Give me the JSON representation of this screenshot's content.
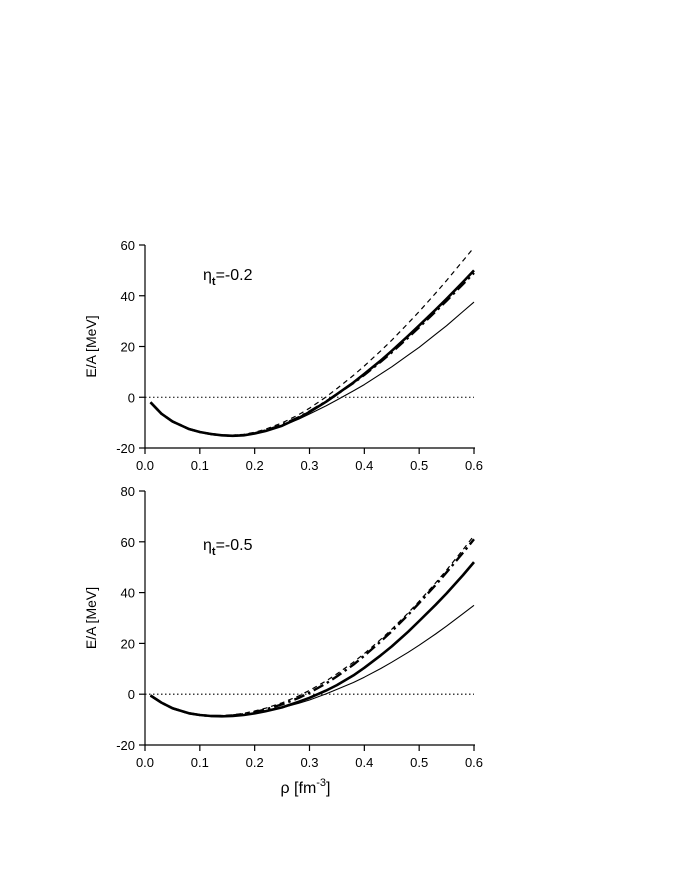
{
  "chart_data": [
    {
      "type": "line",
      "annotation": {
        "symbol": "η",
        "subscript": "t",
        "value": "=-0.2"
      },
      "ylabel": "E/A [MeV]",
      "xlabel": "",
      "xlim": [
        0.0,
        0.6
      ],
      "ylim": [
        -20,
        60
      ],
      "xticks": [
        "0.0",
        "0.1",
        "0.2",
        "0.3",
        "0.4",
        "0.5",
        "0.6"
      ],
      "yticks": [
        "-20",
        "0",
        "20",
        "40",
        "60"
      ],
      "reference_line": {
        "y": 0,
        "style": "dotted"
      },
      "x": [
        0.01,
        0.03,
        0.05,
        0.08,
        0.1,
        0.12,
        0.14,
        0.16,
        0.18,
        0.2,
        0.22,
        0.25,
        0.28,
        0.3,
        0.33,
        0.35,
        0.38,
        0.4,
        0.43,
        0.45,
        0.48,
        0.5,
        0.53,
        0.55,
        0.58,
        0.6
      ],
      "series": [
        {
          "style": "thick-solid",
          "values": [
            -2,
            -6.5,
            -9.5,
            -12.5,
            -13.7,
            -14.5,
            -15.0,
            -15.2,
            -15.0,
            -14.3,
            -13.3,
            -11.2,
            -8.2,
            -5.8,
            -1.8,
            1.2,
            5.8,
            9.2,
            14.5,
            18.3,
            24.2,
            28.3,
            34.5,
            38.8,
            45.4,
            50.0
          ]
        },
        {
          "style": "thin-solid",
          "values": [
            -2,
            -6.5,
            -9.5,
            -12.5,
            -13.7,
            -14.5,
            -15.0,
            -15.2,
            -15.0,
            -14.2,
            -13.2,
            -11.3,
            -8.7,
            -6.6,
            -3.4,
            -1.1,
            2.5,
            5.0,
            9.2,
            12.0,
            16.6,
            19.7,
            24.8,
            28.2,
            33.8,
            37.5
          ]
        },
        {
          "style": "thin-dashed",
          "values": [
            -2,
            -6.5,
            -9.5,
            -12.5,
            -13.7,
            -14.4,
            -14.8,
            -14.9,
            -14.6,
            -13.8,
            -12.6,
            -10.1,
            -6.9,
            -4.3,
            0.1,
            3.4,
            8.6,
            12.3,
            18.3,
            22.5,
            29.2,
            33.8,
            41.0,
            46.0,
            53.8,
            59.0
          ]
        },
        {
          "style": "dash-dot",
          "values": [
            -2,
            -6.5,
            -9.5,
            -12.5,
            -13.7,
            -14.5,
            -15.0,
            -15.2,
            -14.9,
            -14.2,
            -13.1,
            -10.9,
            -7.9,
            -5.6,
            -1.7,
            1.2,
            5.6,
            8.8,
            14.0,
            17.7,
            23.5,
            27.6,
            33.8,
            38.0,
            44.6,
            49.0
          ]
        }
      ]
    },
    {
      "type": "line",
      "annotation": {
        "symbol": "η",
        "subscript": "t",
        "value": "=-0.5"
      },
      "ylabel": "E/A [MeV]",
      "xlabel": "ρ [fm-3]",
      "xlabel_main": "ρ [fm",
      "xlabel_sup": "-3",
      "xlabel_end": "]",
      "xlim": [
        0.0,
        0.6
      ],
      "ylim": [
        -20,
        80
      ],
      "xticks": [
        "0.0",
        "0.1",
        "0.2",
        "0.3",
        "0.4",
        "0.5",
        "0.6"
      ],
      "yticks": [
        "-20",
        "0",
        "20",
        "40",
        "60",
        "80"
      ],
      "reference_line": {
        "y": 0,
        "style": "dotted"
      },
      "x": [
        0.01,
        0.03,
        0.05,
        0.08,
        0.1,
        0.12,
        0.14,
        0.16,
        0.18,
        0.2,
        0.22,
        0.25,
        0.28,
        0.3,
        0.33,
        0.35,
        0.38,
        0.4,
        0.43,
        0.45,
        0.48,
        0.5,
        0.53,
        0.55,
        0.58,
        0.6
      ],
      "series": [
        {
          "style": "thick-solid",
          "values": [
            -0.5,
            -3.3,
            -5.5,
            -7.5,
            -8.2,
            -8.6,
            -8.7,
            -8.6,
            -8.2,
            -7.5,
            -6.7,
            -5.2,
            -3.0,
            -1.4,
            1.4,
            3.6,
            7.4,
            10.4,
            15.3,
            18.8,
            24.6,
            28.8,
            35.2,
            39.7,
            46.9,
            52.0
          ]
        },
        {
          "style": "thin-solid",
          "values": [
            -0.5,
            -3.3,
            -5.5,
            -7.5,
            -8.2,
            -8.6,
            -8.7,
            -8.6,
            -8.2,
            -7.5,
            -6.7,
            -5.3,
            -3.6,
            -2.3,
            0.1,
            1.9,
            4.6,
            6.7,
            10.1,
            12.6,
            16.5,
            19.3,
            23.7,
            26.8,
            31.7,
            35.0
          ]
        },
        {
          "style": "thin-dashed",
          "values": [
            -0.5,
            -3.3,
            -5.5,
            -7.5,
            -8.2,
            -8.5,
            -8.4,
            -8.1,
            -7.5,
            -6.6,
            -5.5,
            -3.4,
            -0.7,
            1.5,
            5.2,
            8.0,
            12.6,
            16.0,
            21.6,
            25.6,
            32.0,
            36.6,
            43.8,
            48.9,
            56.9,
            62.5
          ]
        },
        {
          "style": "dash-dot",
          "values": [
            -0.5,
            -3.3,
            -5.5,
            -7.5,
            -8.2,
            -8.6,
            -8.6,
            -8.4,
            -7.9,
            -7.1,
            -6.0,
            -4.0,
            -1.5,
            0.6,
            4.2,
            7.0,
            11.6,
            15.1,
            20.8,
            24.8,
            31.3,
            35.9,
            43.0,
            48.0,
            55.7,
            61.0
          ]
        }
      ]
    }
  ],
  "style_map": {
    "thick-solid": {
      "width": 2.6,
      "dash": ""
    },
    "thin-solid": {
      "width": 1.1,
      "dash": ""
    },
    "thin-dashed": {
      "width": 1.2,
      "dash": "5 4"
    },
    "dash-dot": {
      "width": 2.4,
      "dash": "11 4 2.5 4"
    }
  }
}
